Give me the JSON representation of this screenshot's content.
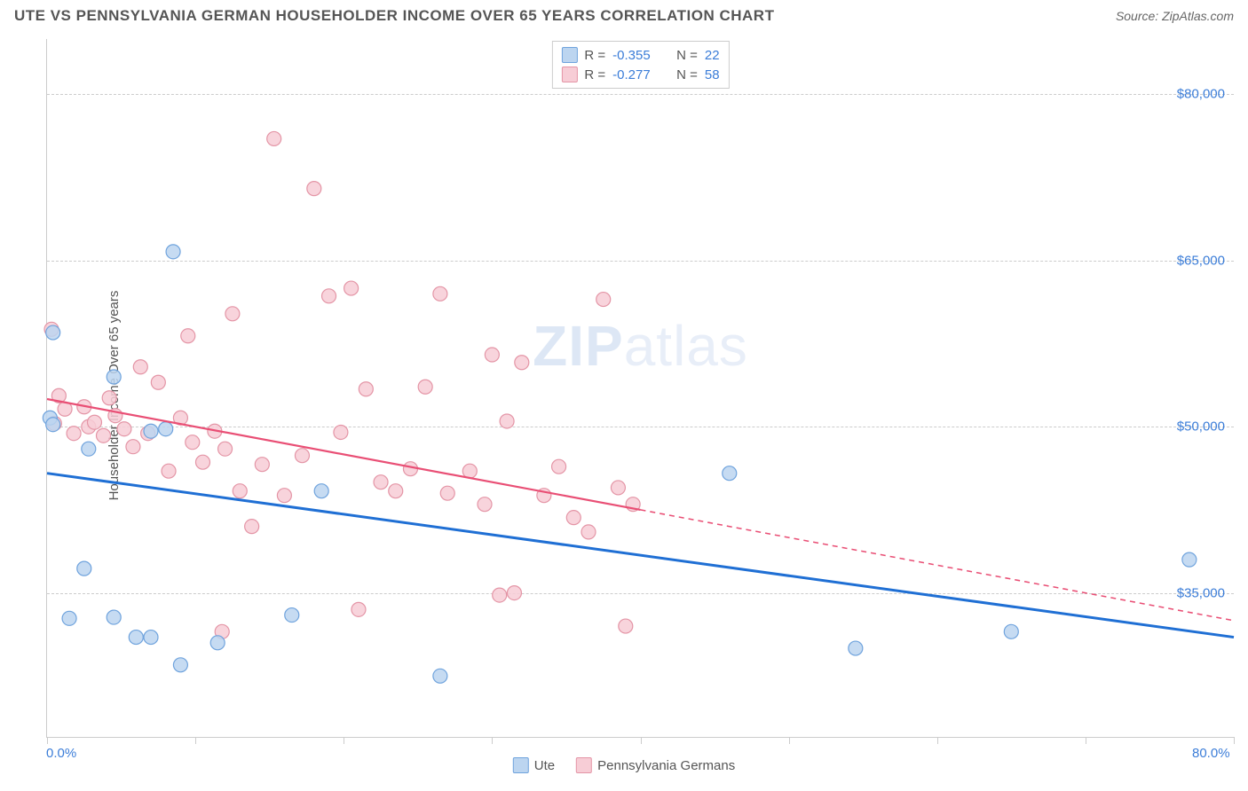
{
  "header": {
    "title": "UTE VS PENNSYLVANIA GERMAN HOUSEHOLDER INCOME OVER 65 YEARS CORRELATION CHART",
    "source_label": "Source: ZipAtlas.com"
  },
  "watermark": {
    "bold": "ZIP",
    "light": "atlas"
  },
  "chart": {
    "type": "scatter",
    "ylabel": "Householder Income Over 65 years",
    "xlim": [
      0,
      80
    ],
    "ylim": [
      22000,
      85000
    ],
    "background_color": "#ffffff",
    "grid_color": "#cccccc",
    "grid_dash": true,
    "xtick_positions": [
      0,
      10,
      20,
      30,
      40,
      50,
      60,
      70,
      80
    ],
    "xtick_labels": {
      "0": "0.0%",
      "80": "80.0%"
    },
    "ytick_positions": [
      35000,
      50000,
      65000,
      80000
    ],
    "ytick_labels": {
      "35000": "$35,000",
      "50000": "$50,000",
      "65000": "$65,000",
      "80000": "$80,000"
    },
    "label_fontsize": 15,
    "tick_color": "#3b7dd8",
    "series": [
      {
        "name": "Ute",
        "fill": "#bcd5f0",
        "stroke": "#6fa3dd",
        "marker_radius": 8,
        "marker_opacity": 0.85,
        "points": [
          [
            0.4,
            58500
          ],
          [
            0.2,
            50800
          ],
          [
            0.4,
            50200
          ],
          [
            8.5,
            65800
          ],
          [
            4.5,
            32800
          ],
          [
            1.5,
            32700
          ],
          [
            4.5,
            54500
          ],
          [
            6.0,
            31000
          ],
          [
            2.8,
            48000
          ],
          [
            2.5,
            37200
          ],
          [
            11.5,
            30500
          ],
          [
            7.0,
            31000
          ],
          [
            9.0,
            28500
          ],
          [
            16.5,
            33000
          ],
          [
            18.5,
            44200
          ],
          [
            26.5,
            27500
          ],
          [
            7.0,
            49600
          ],
          [
            46.0,
            45800
          ],
          [
            54.5,
            30000
          ],
          [
            65.0,
            31500
          ],
          [
            77.0,
            38000
          ],
          [
            8.0,
            49800
          ]
        ],
        "trend": {
          "x1": 0,
          "y1": 45800,
          "x2": 80,
          "y2": 31000,
          "color": "#1f6fd4",
          "width": 3,
          "solid_until_x": 80
        }
      },
      {
        "name": "Pennsylvania Germans",
        "fill": "#f7cdd6",
        "stroke": "#e495a6",
        "marker_radius": 8,
        "marker_opacity": 0.85,
        "points": [
          [
            0.3,
            58800
          ],
          [
            0.8,
            52800
          ],
          [
            0.5,
            50300
          ],
          [
            1.2,
            51600
          ],
          [
            1.8,
            49400
          ],
          [
            2.5,
            51800
          ],
          [
            2.8,
            50000
          ],
          [
            3.2,
            50400
          ],
          [
            3.8,
            49200
          ],
          [
            4.2,
            52600
          ],
          [
            4.6,
            51000
          ],
          [
            5.2,
            49800
          ],
          [
            5.8,
            48200
          ],
          [
            6.3,
            55400
          ],
          [
            6.8,
            49400
          ],
          [
            7.5,
            54000
          ],
          [
            8.2,
            46000
          ],
          [
            9.0,
            50800
          ],
          [
            9.8,
            48600
          ],
          [
            10.5,
            46800
          ],
          [
            11.3,
            49600
          ],
          [
            12.0,
            48000
          ],
          [
            13.0,
            44200
          ],
          [
            12.5,
            60200
          ],
          [
            11.8,
            31500
          ],
          [
            13.8,
            41000
          ],
          [
            14.5,
            46600
          ],
          [
            15.3,
            76000
          ],
          [
            16.0,
            43800
          ],
          [
            17.2,
            47400
          ],
          [
            18.0,
            71500
          ],
          [
            19.0,
            61800
          ],
          [
            19.8,
            49500
          ],
          [
            20.5,
            62500
          ],
          [
            21.5,
            53400
          ],
          [
            22.5,
            45000
          ],
          [
            23.5,
            44200
          ],
          [
            24.5,
            46200
          ],
          [
            25.5,
            53600
          ],
          [
            26.5,
            62000
          ],
          [
            27.0,
            44000
          ],
          [
            28.5,
            46000
          ],
          [
            29.5,
            43000
          ],
          [
            30.5,
            34800
          ],
          [
            31.0,
            50500
          ],
          [
            31.5,
            35000
          ],
          [
            32.0,
            55800
          ],
          [
            33.5,
            43800
          ],
          [
            34.5,
            46400
          ],
          [
            35.5,
            41800
          ],
          [
            36.5,
            40500
          ],
          [
            37.5,
            61500
          ],
          [
            38.5,
            44500
          ],
          [
            39.5,
            43000
          ],
          [
            39.0,
            32000
          ],
          [
            30.0,
            56500
          ],
          [
            21.0,
            33500
          ],
          [
            9.5,
            58200
          ]
        ],
        "trend": {
          "x1": 0,
          "y1": 52500,
          "x2": 80,
          "y2": 32500,
          "color": "#e94f75",
          "width": 2.2,
          "solid_until_x": 40
        }
      }
    ],
    "correlation_box": {
      "rows": [
        {
          "swatch_fill": "#bcd5f0",
          "swatch_stroke": "#6fa3dd",
          "R": "-0.355",
          "N": "22"
        },
        {
          "swatch_fill": "#f7cdd6",
          "swatch_stroke": "#e495a6",
          "R": "-0.277",
          "N": "58"
        }
      ]
    },
    "legend_bottom": [
      {
        "label": "Ute",
        "fill": "#bcd5f0",
        "stroke": "#6fa3dd"
      },
      {
        "label": "Pennsylvania Germans",
        "fill": "#f7cdd6",
        "stroke": "#e495a6"
      }
    ]
  }
}
